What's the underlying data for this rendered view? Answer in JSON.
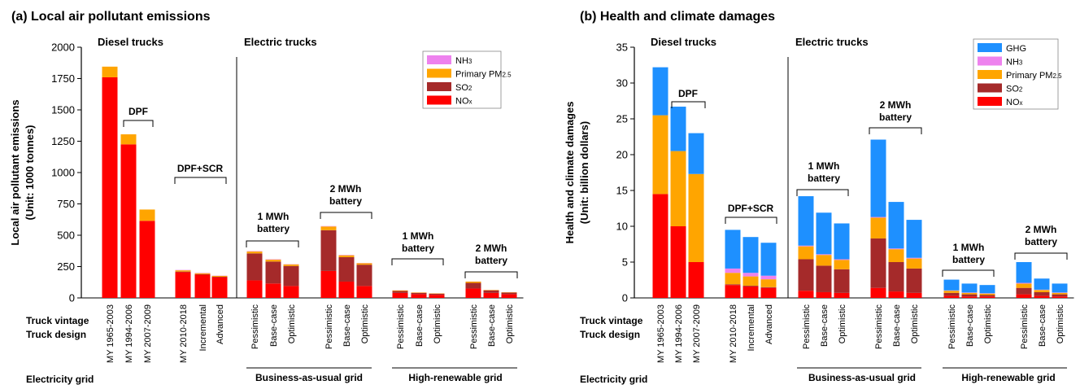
{
  "chart_data": [
    {
      "type": "bar",
      "stacked": true,
      "panel_title": "(a) Local air pollutant emissions",
      "ylabel_line1": "Local air pollutant emissions",
      "ylabel_line2": "(Unit: 1000 tonnes)",
      "ylim": [
        0,
        2000
      ],
      "yticks": [
        "0",
        "250",
        "500",
        "750",
        "1000",
        "1250",
        "1500",
        "1750",
        "2000"
      ],
      "section_labels": [
        "Diesel trucks",
        "Electric trucks"
      ],
      "categories": [
        "MY 1965-2003",
        "MY 1994-2006",
        "MY 2007-2009",
        "MY 2010-2018",
        "Incremental",
        "Advanced",
        "Pessimistic",
        "Base-case",
        "Optimistic",
        "Pessimistic",
        "Base-case",
        "Optimistic",
        "Pessimistic",
        "Base-case",
        "Optimistic",
        "Pessimistic",
        "Base-case",
        "Optimistic"
      ],
      "series": [
        {
          "name": "NOx",
          "color": "#ff0000",
          "values": [
            1760,
            1225,
            615,
            205,
            185,
            165,
            140,
            115,
            95,
            215,
            130,
            95,
            40,
            30,
            25,
            75,
            40,
            30
          ]
        },
        {
          "name": "SO2",
          "color": "#a52a2a",
          "values": [
            0,
            0,
            0,
            5,
            4,
            4,
            215,
            175,
            160,
            325,
            195,
            170,
            15,
            10,
            8,
            45,
            20,
            12
          ]
        },
        {
          "name": "Primary PM2.5",
          "color": "#ffa500",
          "values": [
            85,
            80,
            90,
            10,
            8,
            7,
            15,
            15,
            12,
            30,
            15,
            12,
            5,
            4,
            3,
            10,
            4,
            3
          ]
        },
        {
          "name": "NH3",
          "color": "#ee82ee",
          "values": [
            0,
            0,
            0,
            3,
            3,
            2,
            3,
            3,
            2,
            3,
            3,
            2,
            1,
            1,
            1,
            1,
            1,
            1
          ]
        }
      ],
      "annotations": [
        {
          "label": "DPF"
        },
        {
          "label": "DPF+SCR"
        },
        {
          "label_line1": "1 MWh",
          "label_line2": "battery"
        },
        {
          "label_line1": "2 MWh",
          "label_line2": "battery"
        },
        {
          "label_line1": "1 MWh",
          "label_line2": "battery"
        },
        {
          "label_line1": "2 MWh",
          "label_line2": "battery"
        }
      ],
      "legend_order": [
        "NH3",
        "Primary PM2.5",
        "SO2",
        "NOx"
      ],
      "legend_placement": "top-right",
      "row_labels": {
        "vintage": "Truck vintage",
        "design": "Truck design",
        "grid": "Electricity grid"
      },
      "grid_labels": [
        "Business-as-usual grid",
        "High-renewable grid"
      ]
    },
    {
      "type": "bar",
      "stacked": true,
      "panel_title": "(b) Health and climate damages",
      "ylabel_line1": "Health and climate damages",
      "ylabel_line2": "(Unit: billion dollars)",
      "ylim": [
        0,
        35
      ],
      "yticks": [
        "0",
        "5",
        "10",
        "15",
        "20",
        "25",
        "30",
        "35"
      ],
      "section_labels": [
        "Diesel trucks",
        "Electric trucks"
      ],
      "categories": [
        "MY 1965-2003",
        "MY 1994-2006",
        "MY 2007-2009",
        "MY 2010-2018",
        "Incremental",
        "Advanced",
        "Pessimistic",
        "Base-case",
        "Optimistic",
        "Pessimistic",
        "Base-case",
        "Optimistic",
        "Pessimistic",
        "Base-case",
        "Optimistic",
        "Pessimistic",
        "Base-case",
        "Optimistic"
      ],
      "series": [
        {
          "name": "NOx",
          "color": "#ff0000",
          "values": [
            14.5,
            10.0,
            5.0,
            1.8,
            1.6,
            1.4,
            1.0,
            0.8,
            0.7,
            1.4,
            0.9,
            0.7,
            0.3,
            0.2,
            0.2,
            0.5,
            0.3,
            0.2
          ]
        },
        {
          "name": "SO2",
          "color": "#a52a2a",
          "values": [
            0,
            0,
            0,
            0.1,
            0.1,
            0.1,
            4.4,
            3.7,
            3.3,
            6.9,
            4.1,
            3.4,
            0.4,
            0.3,
            0.2,
            0.9,
            0.5,
            0.3
          ]
        },
        {
          "name": "Primary PM2.5",
          "color": "#ffa500",
          "values": [
            11.0,
            10.5,
            12.3,
            1.6,
            1.3,
            1.1,
            1.8,
            1.5,
            1.3,
            2.9,
            1.8,
            1.4,
            0.3,
            0.2,
            0.2,
            0.6,
            0.3,
            0.2
          ]
        },
        {
          "name": "NH3",
          "color": "#ee82ee",
          "values": [
            0,
            0,
            0,
            0.6,
            0.5,
            0.5,
            0.1,
            0.1,
            0.1,
            0.1,
            0.1,
            0.1,
            0.05,
            0.05,
            0.05,
            0.1,
            0.05,
            0.05
          ]
        },
        {
          "name": "GHG",
          "color": "#1e90ff",
          "values": [
            6.7,
            6.2,
            5.7,
            5.4,
            5.0,
            4.6,
            6.9,
            5.8,
            5.0,
            10.8,
            6.5,
            5.3,
            1.5,
            1.25,
            1.15,
            2.9,
            1.55,
            1.25
          ]
        }
      ],
      "annotations": [
        {
          "label": "DPF"
        },
        {
          "label": "DPF+SCR"
        },
        {
          "label_line1": "1 MWh",
          "label_line2": "battery"
        },
        {
          "label_line1": "2 MWh",
          "label_line2": "battery"
        },
        {
          "label_line1": "1 MWh",
          "label_line2": "battery"
        },
        {
          "label_line1": "2 MWh",
          "label_line2": "battery"
        }
      ],
      "legend_order": [
        "GHG",
        "NH3",
        "Primary PM2.5",
        "SO2",
        "NOx"
      ],
      "legend_placement": "top-right",
      "row_labels": {
        "vintage": "Truck vintage",
        "design": "Truck design",
        "grid": "Electricity grid"
      },
      "grid_labels": [
        "Business-as-usual grid",
        "High-renewable grid"
      ]
    }
  ]
}
